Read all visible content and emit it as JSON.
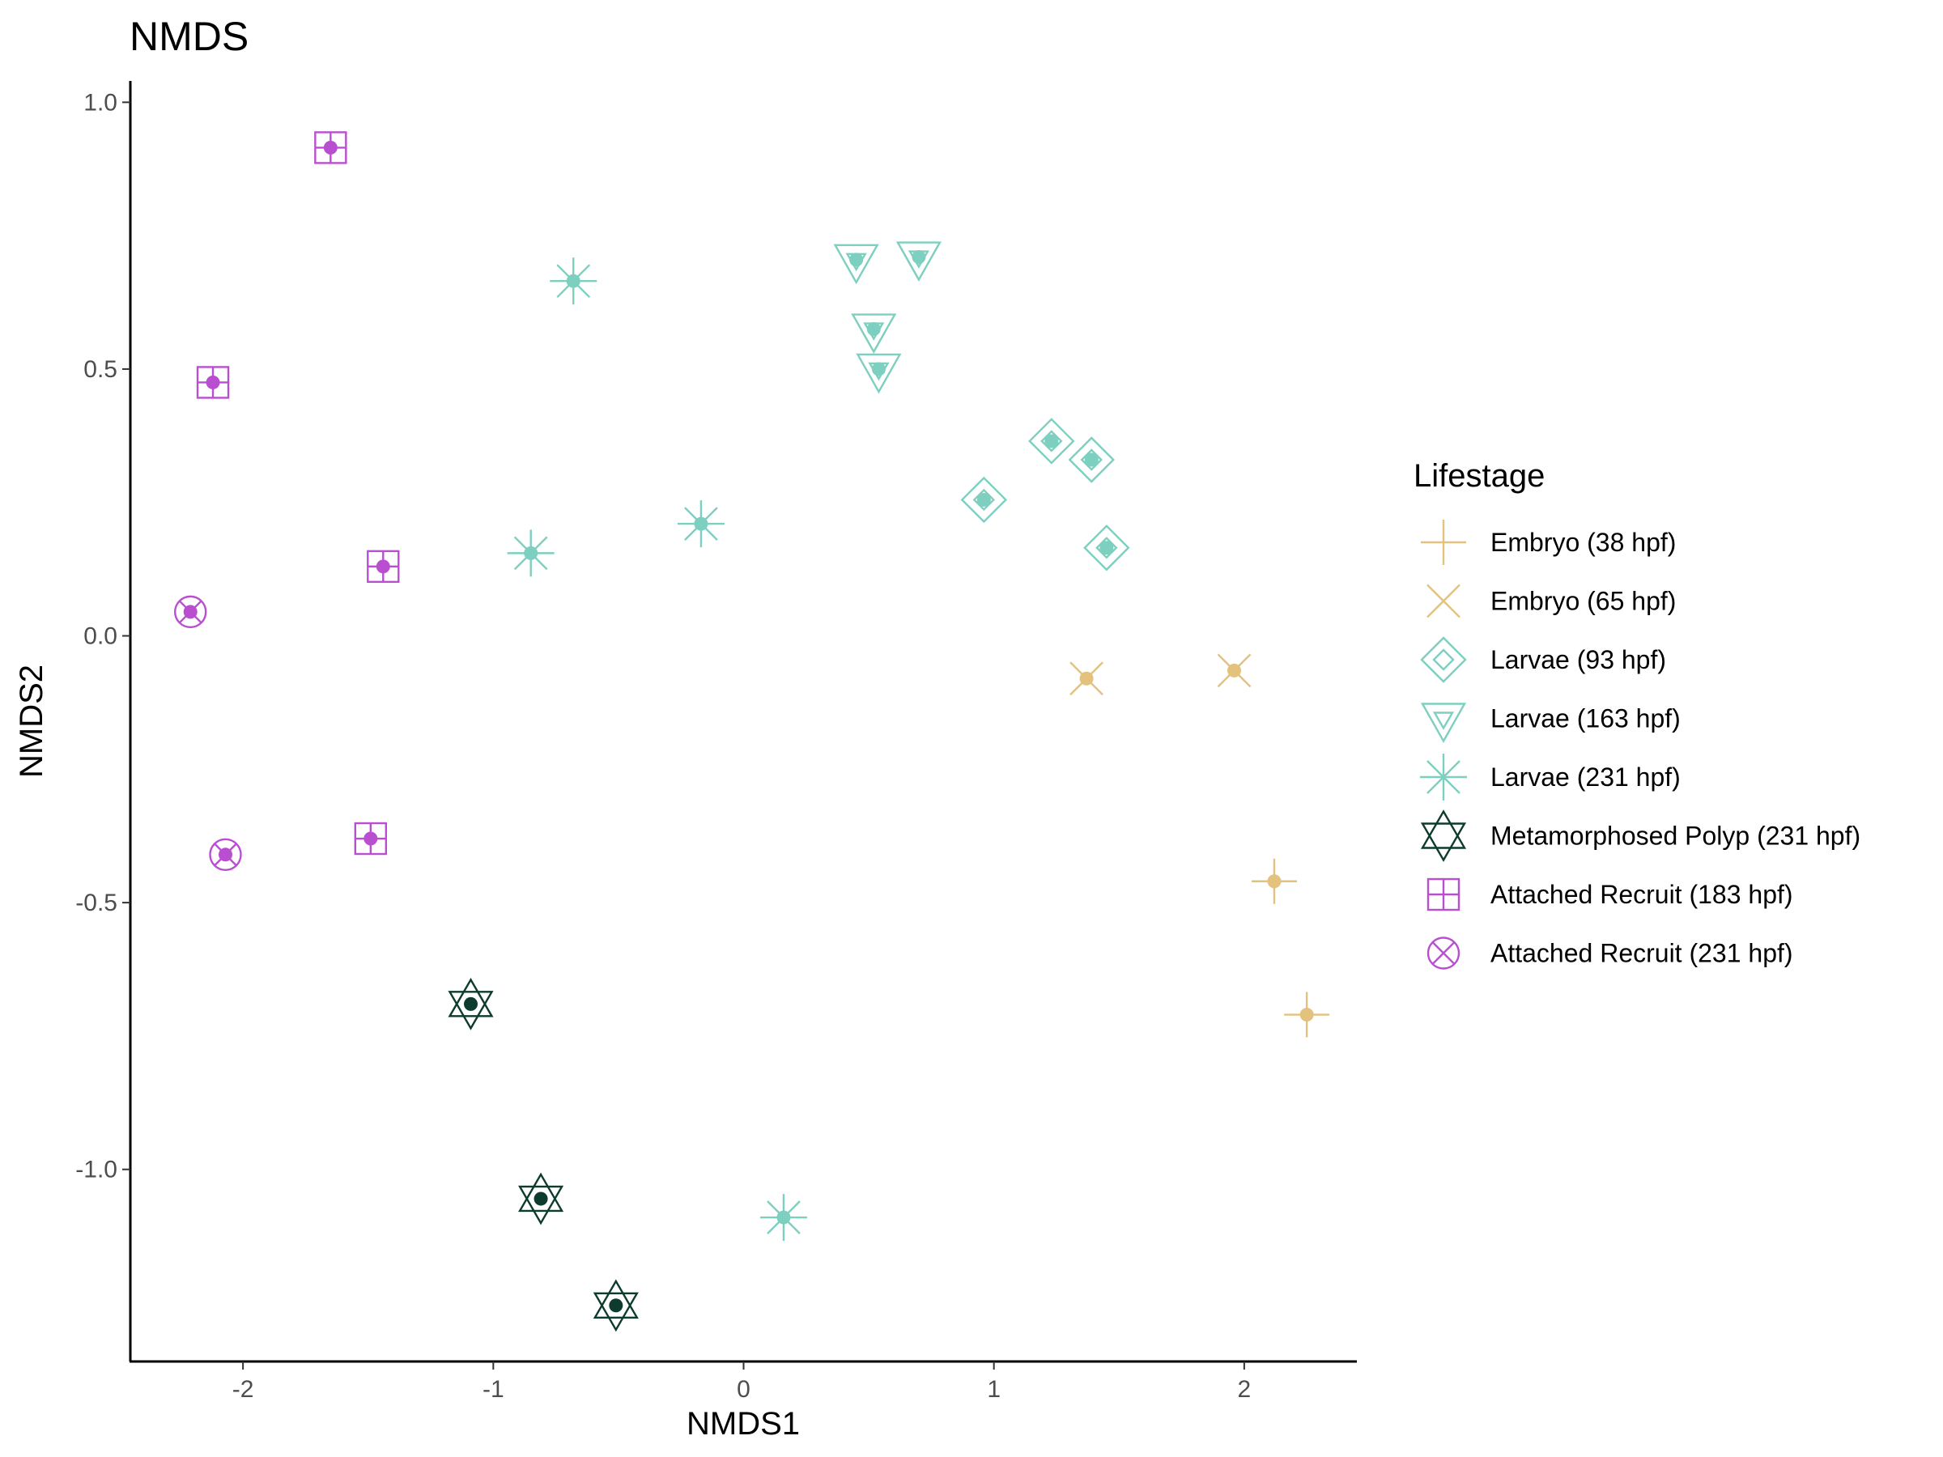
{
  "chart_data": {
    "type": "scatter",
    "title": "NMDS",
    "xlabel": "NMDS1",
    "ylabel": "NMDS2",
    "xlim": [
      -2.45,
      2.45
    ],
    "ylim": [
      -1.36,
      1.04
    ],
    "x_ticks": [
      -2,
      -1,
      0,
      1,
      2
    ],
    "x_tick_labels": [
      "-2",
      "-1",
      "0",
      "1",
      "2"
    ],
    "y_ticks": [
      -1.0,
      -0.5,
      0.0,
      0.5,
      1.0
    ],
    "y_tick_labels": [
      "-1.0",
      "-0.5",
      "0.0",
      "0.5",
      "1.0"
    ],
    "grid": false,
    "legend_title": "Lifestage",
    "legend_position": "right",
    "series": [
      {
        "name": "Embryo (38 hpf)",
        "color": "#e3c27d",
        "shape": "plus",
        "x": [
          2.12,
          2.25
        ],
        "y": [
          -0.46,
          -0.71
        ]
      },
      {
        "name": "Embryo (65 hpf)",
        "color": "#e3c27d",
        "shape": "cross",
        "x": [
          1.37,
          1.96
        ],
        "y": [
          -0.08,
          -0.065
        ]
      },
      {
        "name": "Larvae (93 hpf)",
        "color": "#7dcfbf",
        "shape": "diamond-plus",
        "x": [
          0.96,
          1.23,
          1.39,
          1.45
        ],
        "y": [
          0.255,
          0.365,
          0.33,
          0.165
        ]
      },
      {
        "name": "Larvae (163 hpf)",
        "color": "#7dcfbf",
        "shape": "triangle-down-in",
        "x": [
          0.45,
          0.7,
          0.52,
          0.54
        ],
        "y": [
          0.705,
          0.71,
          0.575,
          0.5
        ]
      },
      {
        "name": "Larvae (231 hpf)",
        "color": "#7dcfbf",
        "shape": "asterisk",
        "x": [
          -0.68,
          -0.17,
          -0.85,
          0.16
        ],
        "y": [
          0.665,
          0.21,
          0.155,
          -1.09
        ]
      },
      {
        "name": "Metamorphosed Polyp (231 hpf)",
        "color": "#0d3b2e",
        "shape": "star-of-david",
        "x": [
          -1.09,
          -0.81,
          -0.51
        ],
        "y": [
          -0.69,
          -1.055,
          -1.255
        ]
      },
      {
        "name": "Attached Recruit (183 hpf)",
        "color": "#b94fd0",
        "shape": "square-plus",
        "x": [
          -1.65,
          -2.12,
          -1.44,
          -1.49
        ],
        "y": [
          0.915,
          0.475,
          0.13,
          -0.38
        ]
      },
      {
        "name": "Attached Recruit (231 hpf)",
        "color": "#b94fd0",
        "shape": "circle-cross",
        "x": [
          -2.21,
          -2.07
        ],
        "y": [
          0.045,
          -0.41
        ]
      }
    ]
  }
}
